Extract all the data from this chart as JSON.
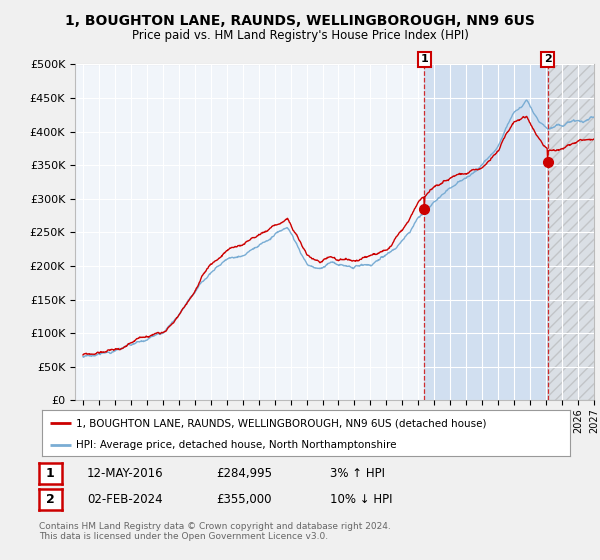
{
  "title": "1, BOUGHTON LANE, RAUNDS, WELLINGBOROUGH, NN9 6US",
  "subtitle": "Price paid vs. HM Land Registry's House Price Index (HPI)",
  "background_color": "#f0f0f0",
  "plot_bg_color": "#dce9f5",
  "legend_line1": "1, BOUGHTON LANE, RAUNDS, WELLINGBOROUGH, NN9 6US (detached house)",
  "legend_line2": "HPI: Average price, detached house, North Northamptonshire",
  "annotation1": {
    "label": "1",
    "date": "12-MAY-2016",
    "price": "£284,995",
    "hpi": "3% ↑ HPI"
  },
  "annotation2": {
    "label": "2",
    "date": "02-FEB-2024",
    "price": "£355,000",
    "hpi": "10% ↓ HPI"
  },
  "footer": "Contains HM Land Registry data © Crown copyright and database right 2024.\nThis data is licensed under the Open Government Licence v3.0.",
  "red_color": "#cc0000",
  "blue_color": "#7aadd4",
  "ylim": [
    0,
    500000
  ],
  "yticks": [
    0,
    50000,
    100000,
    150000,
    200000,
    250000,
    300000,
    350000,
    400000,
    450000,
    500000
  ],
  "xstart_year": 1995,
  "xend_year": 2027,
  "sale1_year": 2016.37,
  "sale2_year": 2024.09,
  "sale1_price": 284995,
  "sale2_price": 355000
}
